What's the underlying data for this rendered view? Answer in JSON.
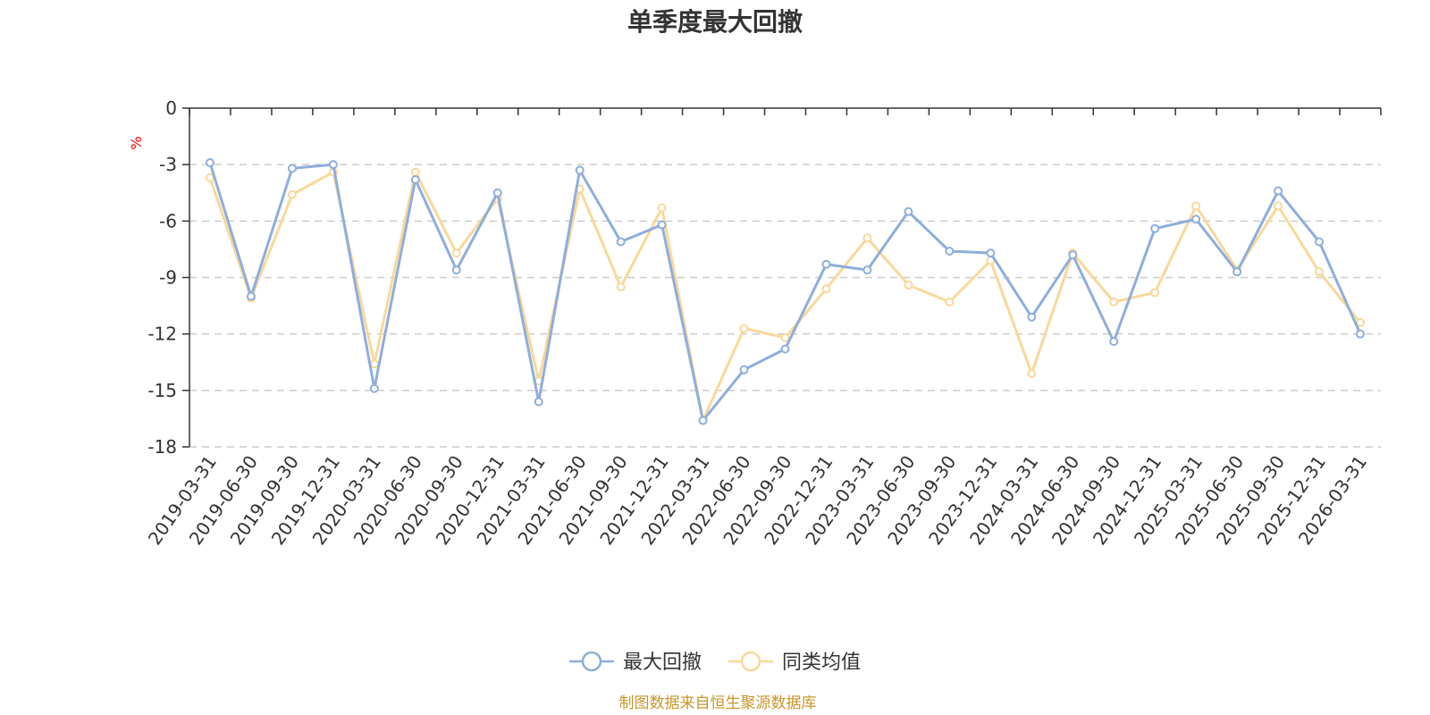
{
  "chart_data": {
    "type": "line",
    "title": "单季度最大回撤",
    "ylabel": "%",
    "xlabel": "",
    "ylim": [
      -18,
      0
    ],
    "yticks": [
      0,
      -3,
      -6,
      -9,
      -12,
      -15,
      -18
    ],
    "grid": true,
    "legend_position": "bottom-center",
    "categories": [
      "2019-03-31",
      "2019-06-30",
      "2019-09-30",
      "2019-12-31",
      "2020-03-31",
      "2020-06-30",
      "2020-09-30",
      "2020-12-31",
      "2021-03-31",
      "2021-06-30",
      "2021-09-30",
      "2021-12-31",
      "2022-03-31",
      "2022-06-30",
      "2022-09-30",
      "2022-12-31",
      "2023-03-31",
      "2023-06-30",
      "2023-09-30",
      "2023-12-31",
      "2024-03-31",
      "2024-06-30",
      "2024-09-30",
      "2024-12-31",
      "2025-03-31",
      "2025-06-30",
      "2025-09-30",
      "2025-12-31",
      "2026-03-31"
    ],
    "series": [
      {
        "name": "最大回撤",
        "color": "#8eaedc",
        "values": [
          -2.9,
          -10.0,
          -3.2,
          -3.0,
          -14.9,
          -3.8,
          -8.6,
          -4.5,
          -15.6,
          -3.3,
          -7.1,
          -6.2,
          -16.6,
          -13.9,
          -12.8,
          -8.3,
          -8.6,
          -5.5,
          -7.6,
          -7.7,
          -11.1,
          -7.8,
          -12.4,
          -6.4,
          -5.9,
          -8.7,
          -4.4,
          -7.1,
          -12.0
        ]
      },
      {
        "name": "同类均值",
        "color": "#f9d89a",
        "values": [
          -3.7,
          -10.1,
          -4.6,
          -3.4,
          -13.6,
          -3.4,
          -7.7,
          -4.8,
          -14.5,
          -4.3,
          -9.5,
          -5.3,
          -16.6,
          -11.7,
          -12.2,
          -9.6,
          -6.9,
          -9.4,
          -10.3,
          -8.1,
          -14.1,
          -7.7,
          -10.3,
          -9.8,
          -5.2,
          -8.6,
          -5.2,
          -8.7,
          -11.4
        ]
      }
    ]
  },
  "footer": {
    "source": "制图数据来自恒生聚源数据库"
  }
}
